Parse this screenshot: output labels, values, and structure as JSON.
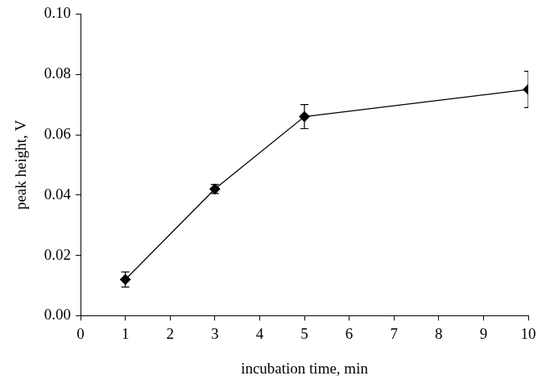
{
  "chart_data": {
    "type": "line",
    "x_label": "incubation time, min",
    "y_label": "peak height, V",
    "x": [
      1,
      3,
      5,
      10
    ],
    "values": [
      0.012,
      0.042,
      0.066,
      0.075
    ],
    "errors": [
      0.0025,
      0.0015,
      0.004,
      0.006
    ],
    "color": "#000000",
    "marker": "diamond",
    "line_style": "solid",
    "xlim": [
      0,
      10
    ],
    "xticks": [
      0,
      1,
      2,
      3,
      4,
      5,
      6,
      7,
      8,
      9,
      10
    ],
    "ylim": [
      0,
      0.1
    ],
    "yticks": [
      {
        "value": 0,
        "label": "0.00"
      },
      {
        "value": 0.02,
        "label": "0.02"
      },
      {
        "value": 0.04,
        "label": "0.04"
      },
      {
        "value": 0.06,
        "label": "0.06"
      },
      {
        "value": 0.08,
        "label": "0.08"
      },
      {
        "value": 0.1,
        "label": "0.10"
      }
    ],
    "grid": false
  }
}
